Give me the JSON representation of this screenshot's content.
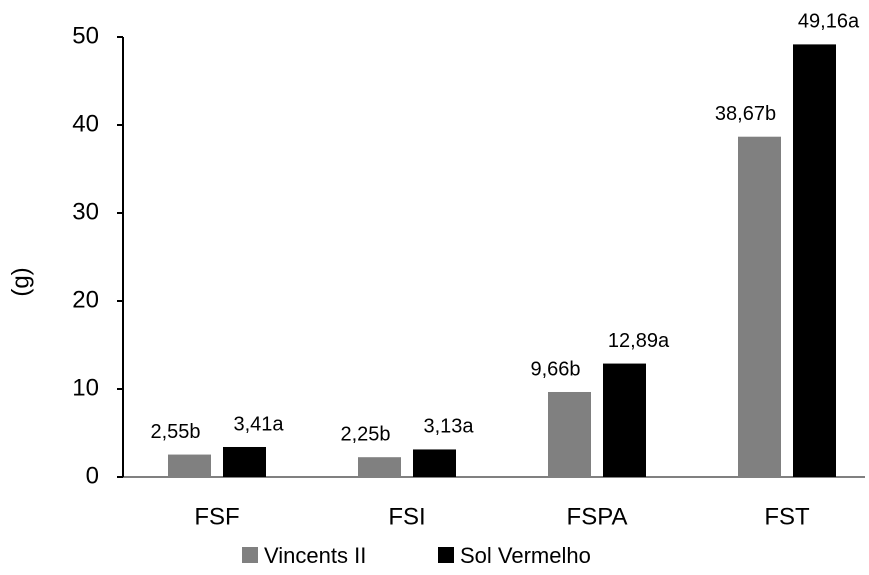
{
  "chart_data": {
    "type": "bar",
    "y_label": "(g)",
    "categories": [
      "FSF",
      "FSI",
      "FSPA",
      "FST"
    ],
    "series": [
      {
        "name": "Vincents II",
        "color": "#808080",
        "values": [
          2.55,
          2.25,
          9.66,
          38.67
        ],
        "value_labels": [
          "2,55b",
          "2,25b",
          "9,66b",
          "38,67b"
        ]
      },
      {
        "name": "Sol Vermelho",
        "color": "#000000",
        "values": [
          3.41,
          3.13,
          12.89,
          49.16
        ],
        "value_labels": [
          "3,41a",
          "3,13a",
          "12,89a",
          "49,16a"
        ]
      }
    ],
    "ylim": [
      0,
      50
    ],
    "yticks": [
      0,
      10,
      20,
      30,
      40,
      50
    ],
    "grid": false,
    "legend": "bottom"
  }
}
